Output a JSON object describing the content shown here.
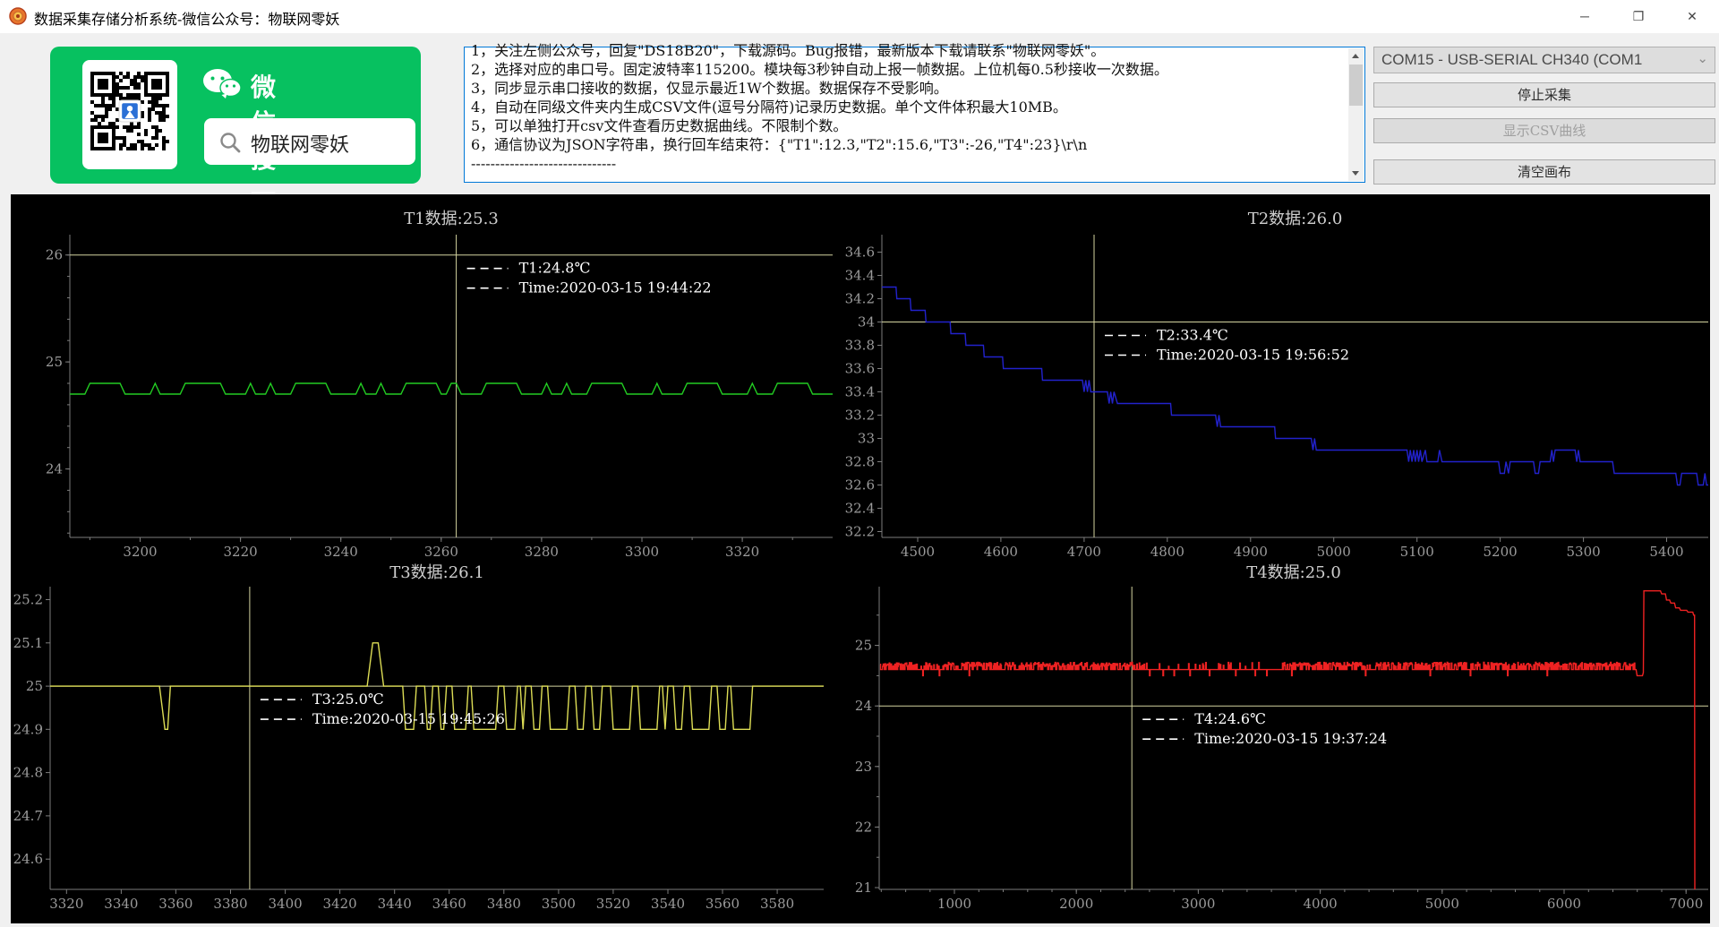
{
  "window": {
    "title": "数据采集存储分析系统-微信公众号：物联网零妖",
    "minimize_icon": "─",
    "restore_icon": "❐",
    "close_icon": "✕"
  },
  "wechat_card": {
    "headline": "微信搜一搜",
    "search_text": "物联网零妖",
    "green": "#07c160"
  },
  "instructions": {
    "lines": [
      "1，关注左侧公众号，回复\"DS18B20\"，下载源码。Bug报错，最新版本下载请联系\"物联网零妖\"。",
      "2，选择对应的串口号。固定波特率115200。模块每3秒钟自动上报一帧数据。上位机每0.5秒接收一次数据。",
      "3，同步显示串口接收的数据，仅显示最近1W个数据。数据保存不受影响。",
      "4，自动在同级文件夹内生成CSV文件(逗号分隔符)记录历史数据。单个文件体积最大10MB。",
      "5，可以单独打开csv文件查看历史数据曲线。不限制个数。",
      "6，通信协议为JSON字符串，换行回车结束符：{\"T1\":12.3,\"T2\":15.6,\"T3\":-26,\"T4\":23}\\r\\n",
      "------------------------------"
    ]
  },
  "serial": {
    "port_label": "COM15 - USB-SERIAL CH340 (COM1",
    "dropdown_icon": "⌄"
  },
  "toolbar": {
    "stop_label": "停止采集",
    "csv_label": "显示CSV曲线",
    "csv_enabled": false,
    "clear_label": "清空画布"
  },
  "chart_data": [
    {
      "id": "t1",
      "type": "line",
      "title": "T1数据:25.3",
      "color": "#22cc22",
      "xlim": [
        3186,
        3338
      ],
      "ylim": [
        23.36,
        26.19
      ],
      "xticks": [
        3200,
        3220,
        3240,
        3260,
        3280,
        3300,
        3320
      ],
      "yticks": [
        24,
        25,
        26
      ],
      "xminor": 10,
      "yminor": 0.2,
      "grid": false,
      "legend": "none",
      "crosshair": {
        "x": 3263,
        "y": 26.0
      },
      "annotation": {
        "value_text": "T1:24.8℃",
        "time_text": "Time:2020-03-15 19:44:22"
      },
      "points": [
        [
          3186,
          24.7
        ],
        [
          3189,
          24.7
        ],
        [
          3190,
          24.8
        ],
        [
          3196,
          24.8
        ],
        [
          3197,
          24.7
        ],
        [
          3202,
          24.7
        ],
        [
          3203,
          24.8
        ],
        [
          3204,
          24.7
        ],
        [
          3208,
          24.7
        ],
        [
          3209,
          24.8
        ],
        [
          3216,
          24.8
        ],
        [
          3217,
          24.7
        ],
        [
          3221,
          24.7
        ],
        [
          3222,
          24.8
        ],
        [
          3223,
          24.7
        ],
        [
          3225,
          24.7
        ],
        [
          3226,
          24.8
        ],
        [
          3227,
          24.7
        ],
        [
          3230,
          24.7
        ],
        [
          3231,
          24.8
        ],
        [
          3237,
          24.8
        ],
        [
          3238,
          24.7
        ],
        [
          3243,
          24.7
        ],
        [
          3244,
          24.8
        ],
        [
          3245,
          24.7
        ],
        [
          3247,
          24.7
        ],
        [
          3248,
          24.8
        ],
        [
          3249,
          24.7
        ],
        [
          3252,
          24.7
        ],
        [
          3253,
          24.8
        ],
        [
          3259,
          24.8
        ],
        [
          3260,
          24.7
        ],
        [
          3261,
          24.7
        ],
        [
          3262,
          24.8
        ],
        [
          3263,
          24.8
        ],
        [
          3264,
          24.7
        ],
        [
          3268,
          24.7
        ],
        [
          3269,
          24.8
        ],
        [
          3275,
          24.8
        ],
        [
          3276,
          24.7
        ],
        [
          3280,
          24.7
        ],
        [
          3281,
          24.8
        ],
        [
          3282,
          24.7
        ],
        [
          3284,
          24.7
        ],
        [
          3285,
          24.8
        ],
        [
          3286,
          24.7
        ],
        [
          3289,
          24.7
        ],
        [
          3290,
          24.8
        ],
        [
          3296,
          24.8
        ],
        [
          3297,
          24.7
        ],
        [
          3302,
          24.7
        ],
        [
          3303,
          24.8
        ],
        [
          3304,
          24.7
        ],
        [
          3308,
          24.7
        ],
        [
          3309,
          24.8
        ],
        [
          3315,
          24.8
        ],
        [
          3316,
          24.7
        ],
        [
          3321,
          24.7
        ],
        [
          3322,
          24.8
        ],
        [
          3323,
          24.7
        ],
        [
          3326,
          24.7
        ],
        [
          3327,
          24.8
        ],
        [
          3333,
          24.8
        ],
        [
          3334,
          24.7
        ],
        [
          3338,
          24.7
        ]
      ]
    },
    {
      "id": "t2",
      "type": "line",
      "title": "T2数据:26.0",
      "color": "#2222cc",
      "xlim": [
        4457,
        5450
      ],
      "ylim": [
        32.15,
        34.75
      ],
      "xticks": [
        4500,
        4600,
        4700,
        4800,
        4900,
        5000,
        5100,
        5200,
        5300,
        5400
      ],
      "yticks": [
        34.6,
        34.4,
        34.2,
        34,
        33.8,
        33.6,
        33.4,
        33.2,
        33,
        32.8,
        32.6,
        32.4,
        32.2
      ],
      "grid": false,
      "legend": "none",
      "crosshair": {
        "x": 4712,
        "y": 34.0
      },
      "annotation": {
        "value_text": "T2:33.4℃",
        "time_text": "Time:2020-03-15 19:56:52"
      },
      "points": [
        [
          4457,
          34.3
        ],
        [
          4474,
          34.3
        ],
        [
          4475,
          34.2
        ],
        [
          4491,
          34.2
        ],
        [
          4492,
          34.1
        ],
        [
          4509,
          34.1
        ],
        [
          4510,
          34.0
        ],
        [
          4539,
          34.0
        ],
        [
          4540,
          33.9
        ],
        [
          4557,
          33.9
        ],
        [
          4558,
          33.8
        ],
        [
          4579,
          33.8
        ],
        [
          4580,
          33.7
        ],
        [
          4602,
          33.7
        ],
        [
          4603,
          33.6
        ],
        [
          4649,
          33.6
        ],
        [
          4650,
          33.5
        ],
        [
          4698,
          33.5
        ],
        [
          4700,
          33.4
        ],
        [
          4702,
          33.5
        ],
        [
          4704,
          33.4
        ],
        [
          4706,
          33.5
        ],
        [
          4708,
          33.4
        ],
        [
          4728,
          33.4
        ],
        [
          4730,
          33.3
        ],
        [
          4732,
          33.4
        ],
        [
          4734,
          33.3
        ],
        [
          4736,
          33.4
        ],
        [
          4740,
          33.3
        ],
        [
          4804,
          33.3
        ],
        [
          4805,
          33.2
        ],
        [
          4858,
          33.2
        ],
        [
          4860,
          33.1
        ],
        [
          4862,
          33.2
        ],
        [
          4864,
          33.1
        ],
        [
          4929,
          33.1
        ],
        [
          4930,
          33.0
        ],
        [
          4973,
          33.0
        ],
        [
          4975,
          32.9
        ],
        [
          4977,
          33.0
        ],
        [
          4979,
          32.9
        ],
        [
          5088,
          32.9
        ],
        [
          5090,
          32.8
        ],
        [
          5092,
          32.9
        ],
        [
          5094,
          32.8
        ],
        [
          5096,
          32.9
        ],
        [
          5098,
          32.8
        ],
        [
          5100,
          32.9
        ],
        [
          5102,
          32.8
        ],
        [
          5104,
          32.9
        ],
        [
          5106,
          32.8
        ],
        [
          5110,
          32.9
        ],
        [
          5112,
          32.8
        ],
        [
          5125,
          32.8
        ],
        [
          5127,
          32.9
        ],
        [
          5130,
          32.8
        ],
        [
          5198,
          32.8
        ],
        [
          5200,
          32.7
        ],
        [
          5205,
          32.7
        ],
        [
          5207,
          32.8
        ],
        [
          5210,
          32.7
        ],
        [
          5212,
          32.8
        ],
        [
          5240,
          32.8
        ],
        [
          5242,
          32.7
        ],
        [
          5246,
          32.7
        ],
        [
          5248,
          32.8
        ],
        [
          5260,
          32.8
        ],
        [
          5262,
          32.9
        ],
        [
          5264,
          32.8
        ],
        [
          5266,
          32.9
        ],
        [
          5290,
          32.9
        ],
        [
          5292,
          32.8
        ],
        [
          5294,
          32.9
        ],
        [
          5296,
          32.8
        ],
        [
          5335,
          32.8
        ],
        [
          5337,
          32.7
        ],
        [
          5411,
          32.7
        ],
        [
          5413,
          32.6
        ],
        [
          5416,
          32.6
        ],
        [
          5418,
          32.7
        ],
        [
          5436,
          32.7
        ],
        [
          5438,
          32.6
        ],
        [
          5444,
          32.6
        ],
        [
          5446,
          32.7
        ],
        [
          5448,
          32.6
        ],
        [
          5450,
          32.6
        ]
      ]
    },
    {
      "id": "t3",
      "type": "line",
      "title": "T3数据:26.1",
      "color": "#dddd55",
      "xlim": [
        3314,
        3597
      ],
      "ylim": [
        24.53,
        25.23
      ],
      "xticks": [
        3320,
        3340,
        3360,
        3380,
        3400,
        3420,
        3440,
        3460,
        3480,
        3500,
        3520,
        3540,
        3560,
        3580
      ],
      "yticks": [
        25.2,
        25.1,
        25,
        24.9,
        24.8,
        24.7,
        24.6
      ],
      "grid": false,
      "legend": "none",
      "crosshair": {
        "x": 3387,
        "y": 25.0
      },
      "annotation": {
        "value_text": "T3:25.0℃",
        "time_text": "Time:2020-03-15 19:45:26"
      },
      "points": [
        [
          3314,
          25
        ],
        [
          3354,
          25
        ],
        [
          3355,
          24.95
        ],
        [
          3356,
          24.9
        ],
        [
          3357,
          24.9
        ],
        [
          3358,
          25
        ],
        [
          3430,
          25
        ],
        [
          3432,
          25.1
        ],
        [
          3434,
          25.1
        ],
        [
          3436,
          25
        ],
        [
          3443,
          25
        ],
        [
          3444,
          24.9
        ],
        [
          3447,
          24.9
        ],
        [
          3448,
          25
        ],
        [
          3451,
          25
        ],
        [
          3452,
          24.9
        ],
        [
          3453,
          24.9
        ],
        [
          3454,
          25
        ],
        [
          3456,
          25
        ],
        [
          3457,
          24.9
        ],
        [
          3458,
          24.9
        ],
        [
          3459,
          25
        ],
        [
          3461,
          25
        ],
        [
          3462,
          24.9
        ],
        [
          3466,
          24.9
        ],
        [
          3467,
          25
        ],
        [
          3468,
          25
        ],
        [
          3469,
          24.9
        ],
        [
          3477,
          24.9
        ],
        [
          3478,
          25
        ],
        [
          3480,
          25
        ],
        [
          3481,
          24.9
        ],
        [
          3484,
          24.9
        ],
        [
          3485,
          25
        ],
        [
          3486,
          25
        ],
        [
          3487,
          24.9
        ],
        [
          3488,
          25
        ],
        [
          3490,
          25
        ],
        [
          3491,
          24.9
        ],
        [
          3493,
          24.9
        ],
        [
          3494,
          25
        ],
        [
          3496,
          25
        ],
        [
          3497,
          24.9
        ],
        [
          3503,
          24.9
        ],
        [
          3504,
          25
        ],
        [
          3506,
          25
        ],
        [
          3507,
          24.9
        ],
        [
          3509,
          24.9
        ],
        [
          3510,
          25
        ],
        [
          3512,
          25
        ],
        [
          3513,
          24.9
        ],
        [
          3515,
          24.9
        ],
        [
          3516,
          25
        ],
        [
          3519,
          25
        ],
        [
          3520,
          24.9
        ],
        [
          3526,
          24.9
        ],
        [
          3527,
          25
        ],
        [
          3529,
          25
        ],
        [
          3530,
          24.9
        ],
        [
          3536,
          24.9
        ],
        [
          3537,
          25
        ],
        [
          3538,
          25
        ],
        [
          3539,
          24.9
        ],
        [
          3540,
          25
        ],
        [
          3542,
          25
        ],
        [
          3543,
          24.9
        ],
        [
          3545,
          24.9
        ],
        [
          3546,
          25
        ],
        [
          3548,
          25
        ],
        [
          3549,
          24.9
        ],
        [
          3555,
          24.9
        ],
        [
          3556,
          25
        ],
        [
          3558,
          25
        ],
        [
          3559,
          24.9
        ],
        [
          3561,
          24.9
        ],
        [
          3562,
          25
        ],
        [
          3563,
          25
        ],
        [
          3564,
          24.9
        ],
        [
          3570,
          24.9
        ],
        [
          3571,
          25
        ],
        [
          3597,
          25
        ]
      ]
    },
    {
      "id": "t4",
      "type": "line",
      "title": "T4数据:25.0",
      "color": "#ee2222",
      "xlim": [
        383,
        7182
      ],
      "ylim": [
        20.97,
        25.97
      ],
      "xticks": [
        1000,
        2000,
        3000,
        4000,
        5000,
        6000,
        7000
      ],
      "yticks": [
        25,
        24,
        23,
        22,
        21
      ],
      "xminor": 200,
      "yminor": 0.5,
      "grid": false,
      "legend": "none",
      "crosshair": {
        "x": 2455,
        "y": 24.0
      },
      "annotation": {
        "value_text": "T4:24.6℃",
        "time_text": "Time:2020-03-15 19:37:24"
      },
      "noise": {
        "x0": 390,
        "x1": 6590,
        "step": 5,
        "seed": 11,
        "base": 24.6,
        "high_amp": 0.12,
        "p_spike": 0.55,
        "p_quiet": 0.09,
        "p_dip": 0.015,
        "dip": 24.5,
        "quiet": [
          2560,
          3680
        ]
      },
      "points": [
        [
          6590,
          24.6
        ],
        [
          6598,
          24.5
        ],
        [
          6642,
          24.5
        ],
        [
          6650,
          24.55
        ],
        [
          6654,
          25.9
        ],
        [
          6790,
          25.9
        ],
        [
          6800,
          25.85
        ],
        [
          6830,
          25.85
        ],
        [
          6840,
          25.75
        ],
        [
          6865,
          25.75
        ],
        [
          6875,
          25.7
        ],
        [
          6905,
          25.7
        ],
        [
          6915,
          25.62
        ],
        [
          6945,
          25.62
        ],
        [
          6955,
          25.58
        ],
        [
          7005,
          25.58
        ],
        [
          7015,
          25.55
        ],
        [
          7055,
          25.55
        ],
        [
          7062,
          25.5
        ],
        [
          7070,
          25.5
        ],
        [
          7072,
          20.97
        ]
      ]
    }
  ]
}
